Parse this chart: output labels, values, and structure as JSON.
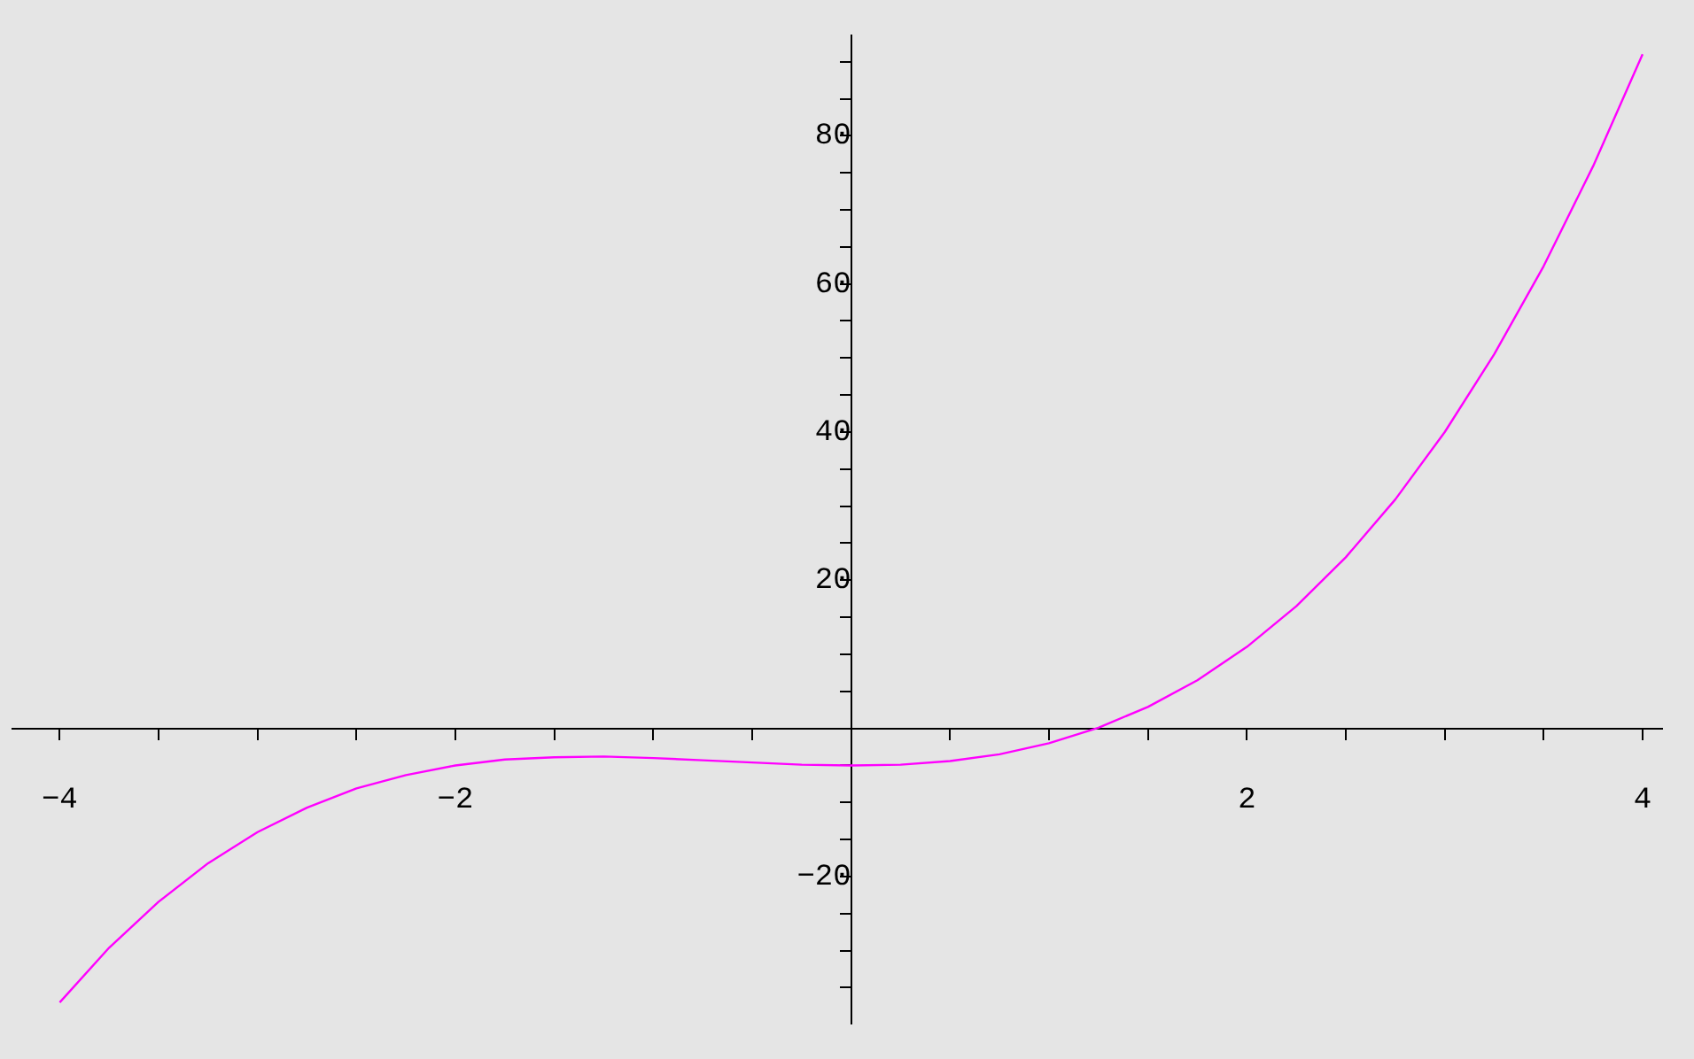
{
  "chart_data": {
    "type": "line",
    "x": [
      -4,
      -3.75,
      -3.5,
      -3.25,
      -3,
      -2.75,
      -2.5,
      -2.25,
      -2,
      -1.75,
      -1.5,
      -1.25,
      -1,
      -0.75,
      -0.5,
      -0.25,
      0,
      0.25,
      0.5,
      0.75,
      1,
      1.25,
      1.5,
      1.75,
      2,
      2.25,
      2.5,
      2.75,
      3,
      3.25,
      3.5,
      3.75,
      4
    ],
    "series": [
      {
        "color": "#ff00ff",
        "values": [
          -37,
          -29.6,
          -23.4,
          -18.2,
          -14,
          -10.7,
          -8.1,
          -6.3,
          -5,
          -4.2,
          -3.9,
          -3.8,
          -4,
          -4.3,
          -4.6,
          -4.9,
          -5,
          -4.9,
          -4.4,
          -3.5,
          -2,
          0.1,
          2.9,
          6.5,
          11,
          16.5,
          23.1,
          30.9,
          40,
          50.5,
          62.4,
          75.9,
          91
        ]
      }
    ],
    "xlim": [
      -4.24,
      4.1
    ],
    "ylim": [
      -39.8,
      93.5
    ],
    "xticks": [
      {
        "value": -4,
        "label": "−4"
      },
      {
        "value": -3.5,
        "label": null
      },
      {
        "value": -3,
        "label": null
      },
      {
        "value": -2.5,
        "label": null
      },
      {
        "value": -2,
        "label": "−2"
      },
      {
        "value": -1.5,
        "label": null
      },
      {
        "value": -1,
        "label": null
      },
      {
        "value": -0.5,
        "label": null
      },
      {
        "value": 0.5,
        "label": null
      },
      {
        "value": 1,
        "label": null
      },
      {
        "value": 1.5,
        "label": null
      },
      2,
      {
        "value": 2.5,
        "label": null
      },
      {
        "value": 3,
        "label": null
      },
      {
        "value": 3.5,
        "label": null
      },
      4
    ],
    "yticks": [
      {
        "value": -35,
        "label": null
      },
      {
        "value": -30,
        "label": null
      },
      {
        "value": -25,
        "label": null
      },
      {
        "value": -20,
        "label": "−20"
      },
      {
        "value": -15,
        "label": null
      },
      {
        "value": -10,
        "label": null
      },
      {
        "value": -5,
        "label": null
      },
      {
        "value": 5,
        "label": null
      },
      {
        "value": 10,
        "label": null
      },
      {
        "value": 15,
        "label": null
      },
      20,
      {
        "value": 25,
        "label": null
      },
      {
        "value": 30,
        "label": null
      },
      {
        "value": 35,
        "label": null
      },
      40,
      {
        "value": 45,
        "label": null
      },
      {
        "value": 50,
        "label": null
      },
      {
        "value": 55,
        "label": null
      },
      60,
      {
        "value": 65,
        "label": null
      },
      {
        "value": 70,
        "label": null
      },
      {
        "value": 75,
        "label": null
      },
      80,
      {
        "value": 85,
        "label": null
      },
      {
        "value": 90,
        "label": null
      }
    ],
    "grid": false,
    "legend": false
  }
}
